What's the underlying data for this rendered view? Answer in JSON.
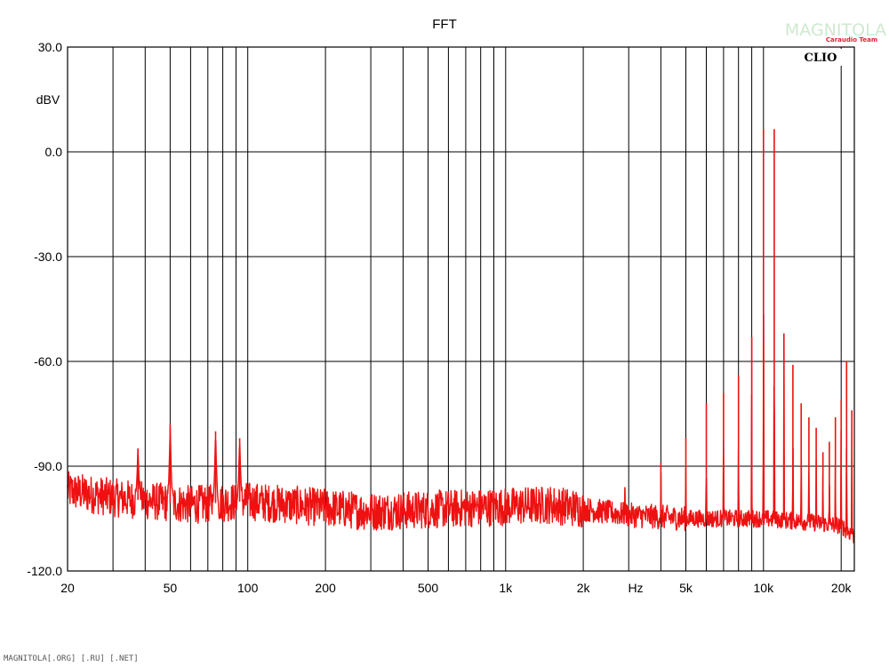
{
  "chart_data": {
    "type": "line",
    "title": "FFT",
    "xlabel": "Hz",
    "ylabel": "dBV",
    "x_scale": "log",
    "xlim": [
      20,
      22500
    ],
    "ylim": [
      -120,
      30
    ],
    "grid": true,
    "y_ticks": [
      "30.0",
      "0.0",
      "-30.0",
      "-60.0",
      "-90.0",
      "-120.0"
    ],
    "x_tick_labels": [
      {
        "label": "20",
        "value": 20
      },
      {
        "label": "50",
        "value": 50
      },
      {
        "label": "100",
        "value": 100
      },
      {
        "label": "200",
        "value": 200
      },
      {
        "label": "500",
        "value": 500
      },
      {
        "label": "1k",
        "value": 1000
      },
      {
        "label": "2k",
        "value": 2000
      },
      {
        "label": "5k",
        "value": 5000
      },
      {
        "label": "10k",
        "value": 10000
      },
      {
        "label": "20k",
        "value": 20000
      }
    ],
    "x_gridlines": [
      30,
      40,
      50,
      60,
      70,
      80,
      90,
      100,
      200,
      300,
      400,
      500,
      600,
      700,
      800,
      900,
      1000,
      2000,
      3000,
      4000,
      5000,
      6000,
      7000,
      8000,
      9000,
      10000,
      20000
    ],
    "series": [
      {
        "color": "#ee1111",
        "noise_floor": [
          [
            20,
            -97
          ],
          [
            30,
            -99
          ],
          [
            60,
            -101
          ],
          [
            100,
            -100
          ],
          [
            300,
            -103
          ],
          [
            700,
            -102
          ],
          [
            1500,
            -101
          ],
          [
            3000,
            -104
          ],
          [
            5000,
            -105
          ],
          [
            10000,
            -105
          ],
          [
            15000,
            -106
          ],
          [
            20000,
            -107
          ],
          [
            22500,
            -110
          ]
        ],
        "peaks": [
          {
            "x": 37.5,
            "y": -85
          },
          {
            "x": 50,
            "y": -78
          },
          {
            "x": 75,
            "y": -80
          },
          {
            "x": 93,
            "y": -82
          },
          {
            "x": 2900,
            "y": -96
          },
          {
            "x": 4000,
            "y": -89
          },
          {
            "x": 5000,
            "y": -82
          },
          {
            "x": 6000,
            "y": -72
          },
          {
            "x": 7000,
            "y": -69
          },
          {
            "x": 8000,
            "y": -64
          },
          {
            "x": 9000,
            "y": -53
          },
          {
            "x": 10000,
            "y": 6.5
          },
          {
            "x": 11000,
            "y": 6.5
          },
          {
            "x": 12000,
            "y": -52
          },
          {
            "x": 13000,
            "y": -61
          },
          {
            "x": 14000,
            "y": -72
          },
          {
            "x": 15000,
            "y": -76
          },
          {
            "x": 16000,
            "y": -79
          },
          {
            "x": 17000,
            "y": -86
          },
          {
            "x": 18000,
            "y": -83
          },
          {
            "x": 19000,
            "y": -76
          },
          {
            "x": 20000,
            "y": -71
          },
          {
            "x": 21000,
            "y": -60
          },
          {
            "x": 22000,
            "y": -74
          }
        ]
      }
    ]
  },
  "branding": {
    "clio": "CLIO",
    "logo_text": "MAGNITOLA",
    "logo_sub": "Caraudio Team",
    "footer": "MAGNITOLA[.ORG] [.RU] [.NET]"
  }
}
